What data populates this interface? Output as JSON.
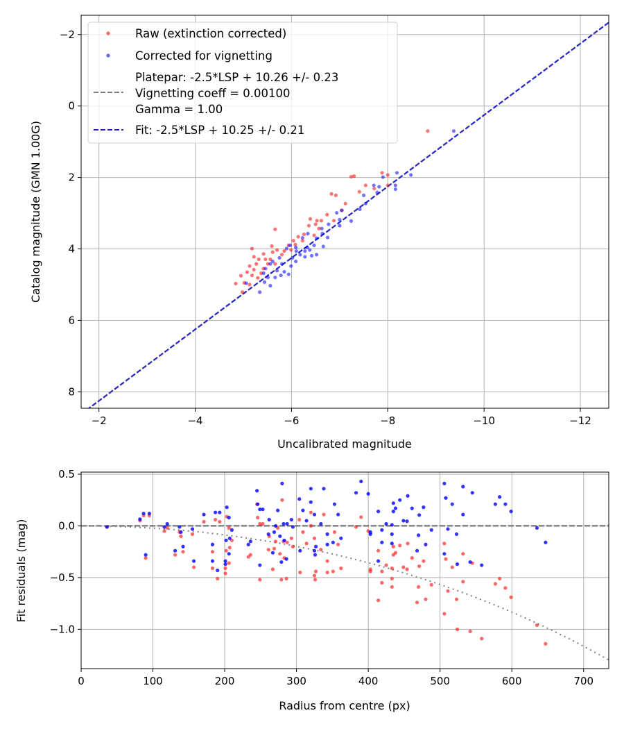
{
  "chart_data": [
    {
      "type": "scatter",
      "title": "",
      "xlabel": "Uncalibrated magnitude",
      "ylabel": "Catalog magnitude (GMN 1.00G)",
      "xlim": [
        -1.63,
        -12.59
      ],
      "ylim": [
        8.46,
        -2.54
      ],
      "grid": true,
      "legend_placement": "top-left",
      "xticks": [
        -2,
        -4,
        -6,
        -8,
        -10,
        -12
      ],
      "xtick_labels": [
        "−2",
        "−4",
        "−6",
        "−8",
        "−10",
        "−12"
      ],
      "yticks": [
        -2,
        0,
        2,
        4,
        6,
        8
      ],
      "ytick_labels": [
        "−2",
        "0",
        "2",
        "4",
        "6",
        "8"
      ],
      "legend": {
        "raw": "Raw (extinction corrected)",
        "corrected": "Corrected for vignetting",
        "platepar_line1": "Platepar: -2.5*LSP + 10.26 +/- 0.23",
        "platepar_line2": "Vignetting coeff = 0.00100",
        "platepar_line3": "Gamma = 1.00",
        "fit": "Fit: -2.5*LSP + 10.25 +/- 0.21"
      },
      "colors": {
        "raw": "#ff0000",
        "corrected": "#0000ff",
        "platepar": "#808080",
        "fit": "#2424d0"
      },
      "platepar_line": {
        "slope": 1,
        "intercept": 10.26
      },
      "fit_line": {
        "slope": 1,
        "intercept": 10.25
      },
      "series": [
        {
          "name": "Raw (extinction corrected)",
          "points": [
            [
              -8.83,
              0.7
            ],
            [
              -7.24,
              1.98
            ],
            [
              -7.3,
              1.96
            ],
            [
              -7.88,
              1.87
            ],
            [
              -8.0,
              1.93
            ],
            [
              -7.54,
              2.22
            ],
            [
              -7.41,
              2.4
            ],
            [
              -6.83,
              2.46
            ],
            [
              -6.92,
              2.5
            ],
            [
              -8.0,
              2.22
            ],
            [
              -7.72,
              2.31
            ],
            [
              -7.12,
              2.73
            ],
            [
              -6.74,
              3.04
            ],
            [
              -7.05,
              2.92
            ],
            [
              -6.39,
              3.16
            ],
            [
              -6.53,
              3.21
            ],
            [
              -6.62,
              3.21
            ],
            [
              -6.36,
              3.35
            ],
            [
              -5.66,
              3.45
            ],
            [
              -6.5,
              3.31
            ],
            [
              -6.88,
              3.21
            ],
            [
              -6.57,
              3.43
            ],
            [
              -6.14,
              3.66
            ],
            [
              -6.26,
              3.59
            ],
            [
              -6.47,
              3.62
            ],
            [
              -5.94,
              3.9
            ],
            [
              -6.08,
              3.88
            ],
            [
              -5.85,
              4.06
            ],
            [
              -5.59,
              3.92
            ],
            [
              -5.61,
              4.09
            ],
            [
              -5.18,
              3.99
            ],
            [
              -5.42,
              4.14
            ],
            [
              -5.32,
              4.29
            ],
            [
              -5.27,
              4.42
            ],
            [
              -5.46,
              4.29
            ],
            [
              -5.13,
              4.48
            ],
            [
              -5.22,
              4.58
            ],
            [
              -5.08,
              4.65
            ],
            [
              -5.56,
              4.29
            ],
            [
              -5.37,
              4.68
            ],
            [
              -5.18,
              4.74
            ],
            [
              -5.3,
              4.81
            ],
            [
              -4.84,
              4.97
            ],
            [
              -4.98,
              5.21
            ],
            [
              -5.51,
              4.42
            ],
            [
              -5.8,
              4.16
            ],
            [
              -5.66,
              4.42
            ],
            [
              -5.42,
              4.55
            ],
            [
              -5.13,
              5.0
            ],
            [
              -5.22,
              4.22
            ],
            [
              -5.7,
              4.03
            ],
            [
              -5.99,
              4.03
            ],
            [
              -6.04,
              3.77
            ],
            [
              -6.23,
              3.77
            ],
            [
              -5.02,
              4.95
            ],
            [
              -4.95,
              4.75
            ]
          ]
        },
        {
          "name": "Corrected for vignetting",
          "points": [
            [
              -9.37,
              0.7
            ],
            [
              -8.19,
              1.87
            ],
            [
              -8.48,
              1.93
            ],
            [
              -7.9,
              1.99
            ],
            [
              -7.71,
              2.22
            ],
            [
              -7.82,
              2.26
            ],
            [
              -8.16,
              2.22
            ],
            [
              -8.16,
              2.33
            ],
            [
              -7.78,
              2.42
            ],
            [
              -7.5,
              2.5
            ],
            [
              -7.54,
              2.73
            ],
            [
              -7.42,
              2.89
            ],
            [
              -6.94,
              2.99
            ],
            [
              -7.04,
              2.92
            ],
            [
              -7.24,
              3.22
            ],
            [
              -7.0,
              3.18
            ],
            [
              -6.77,
              3.31
            ],
            [
              -7.0,
              3.35
            ],
            [
              -6.63,
              3.43
            ],
            [
              -6.64,
              3.57
            ],
            [
              -6.75,
              3.68
            ],
            [
              -6.34,
              3.57
            ],
            [
              -6.23,
              3.69
            ],
            [
              -6.52,
              3.7
            ],
            [
              -6.66,
              3.93
            ],
            [
              -6.47,
              3.9
            ],
            [
              -6.33,
              3.96
            ],
            [
              -6.09,
              3.96
            ],
            [
              -5.97,
              3.9
            ],
            [
              -5.9,
              3.99
            ],
            [
              -6.18,
              4.16
            ],
            [
              -6.28,
              4.22
            ],
            [
              -6.42,
              4.19
            ],
            [
              -6.52,
              4.16
            ],
            [
              -6.09,
              4.35
            ],
            [
              -5.99,
              4.48
            ],
            [
              -5.8,
              4.42
            ],
            [
              -5.75,
              4.25
            ],
            [
              -5.61,
              4.35
            ],
            [
              -5.56,
              4.42
            ],
            [
              -5.46,
              4.55
            ],
            [
              -5.42,
              4.68
            ],
            [
              -5.51,
              4.8
            ],
            [
              -5.44,
              4.93
            ],
            [
              -5.56,
              5.03
            ],
            [
              -5.34,
              5.21
            ],
            [
              -5.06,
              4.96
            ],
            [
              -5.94,
              4.71
            ],
            [
              -5.78,
              4.74
            ],
            [
              -5.85,
              4.64
            ],
            [
              -5.7,
              4.61
            ],
            [
              -5.66,
              4.8
            ],
            [
              -6.02,
              4.25
            ],
            [
              -6.1,
              4.06
            ],
            [
              -6.28,
              4.06
            ],
            [
              -6.38,
              4.03
            ]
          ]
        }
      ]
    },
    {
      "type": "scatter",
      "title": "",
      "xlabel": "Radius from centre (px)",
      "ylabel": "Fit residuals (mag)",
      "xlim": [
        0,
        735
      ],
      "ylim": [
        -1.38,
        0.52
      ],
      "grid": true,
      "xticks": [
        0,
        100,
        200,
        300,
        400,
        500,
        600,
        700
      ],
      "xtick_labels": [
        "0",
        "100",
        "200",
        "300",
        "400",
        "500",
        "600",
        "700"
      ],
      "yticks": [
        0.5,
        0.0,
        -0.5,
        -1.0
      ],
      "ytick_labels": [
        "0.5",
        "0.0",
        "−0.5",
        "−1.0"
      ],
      "zero_line": 0,
      "vignetting_coeff": 0.001,
      "colors": {
        "raw": "#ff0000",
        "corrected": "#0000ff",
        "zero": "#555555",
        "model": "#808080"
      },
      "columns": [
        "radius",
        "raw_residual",
        "corrected_residual"
      ],
      "points": [
        [
          36,
          -0.01,
          -0.01
        ],
        [
          82,
          0.05,
          0.065
        ],
        [
          87,
          0.1,
          0.12
        ],
        [
          95,
          0.1,
          0.12
        ],
        [
          90,
          -0.31,
          -0.28
        ],
        [
          116,
          -0.05,
          -0.01
        ],
        [
          120,
          -0.02,
          0.02
        ],
        [
          131,
          -0.28,
          -0.24
        ],
        [
          137,
          -0.06,
          -0.01
        ],
        [
          139,
          -0.1,
          -0.06
        ],
        [
          142,
          -0.25,
          -0.2
        ],
        [
          155,
          -0.08,
          -0.03
        ],
        [
          157,
          -0.4,
          -0.34
        ],
        [
          171,
          0.04,
          0.11
        ],
        [
          183,
          -0.25,
          -0.18
        ],
        [
          183,
          -0.41,
          -0.34
        ],
        [
          187,
          0.06,
          0.13
        ],
        [
          190,
          -0.51,
          -0.43
        ],
        [
          193,
          0.04,
          0.13
        ],
        [
          201,
          -0.41,
          -0.34
        ],
        [
          201,
          -0.46,
          -0.37
        ],
        [
          202,
          -0.24,
          -0.14
        ],
        [
          203,
          0.09,
          0.18
        ],
        [
          206,
          -0.02,
          0.08
        ],
        [
          207,
          -0.21,
          -0.12
        ],
        [
          206,
          -0.36,
          -0.27
        ],
        [
          210,
          -0.14,
          -0.04
        ],
        [
          233,
          -0.3,
          -0.18
        ],
        [
          236,
          -0.28,
          -0.15
        ],
        [
          245,
          0.21,
          0.34
        ],
        [
          246,
          0.08,
          0.21
        ],
        [
          249,
          0.02,
          0.16
        ],
        [
          253,
          0.02,
          0.16
        ],
        [
          249,
          -0.52,
          -0.38
        ],
        [
          262,
          -0.1,
          0.06
        ],
        [
          261,
          -0.23,
          -0.08
        ],
        [
          269,
          -0.22,
          -0.06
        ],
        [
          267,
          -0.42,
          -0.26
        ],
        [
          271,
          -0.15,
          0.0
        ],
        [
          274,
          -0.02,
          0.15
        ],
        [
          280,
          0.25,
          0.41
        ],
        [
          277,
          -0.27,
          -0.1
        ],
        [
          279,
          -0.52,
          -0.35
        ],
        [
          282,
          -0.15,
          0.02
        ],
        [
          283,
          -0.31,
          -0.14
        ],
        [
          286,
          -0.51,
          -0.32
        ],
        [
          287,
          -0.16,
          0.02
        ],
        [
          293,
          -0.12,
          0.06
        ],
        [
          295,
          -0.2,
          -0.01
        ],
        [
          304,
          0.06,
          0.26
        ],
        [
          305,
          -0.45,
          -0.24
        ],
        [
          309,
          -0.06,
          0.15
        ],
        [
          314,
          -0.17,
          0.05
        ],
        [
          320,
          0.13,
          0.36
        ],
        [
          320,
          0.0,
          0.23
        ],
        [
          325,
          -0.12,
          0.11
        ],
        [
          325,
          -0.48,
          -0.24
        ],
        [
          326,
          -0.52,
          -0.28
        ],
        [
          327,
          -0.44,
          -0.2
        ],
        [
          334,
          -0.23,
          0.02
        ],
        [
          338,
          0.11,
          0.36
        ],
        [
          343,
          -0.34,
          -0.08
        ],
        [
          343,
          -0.45,
          -0.18
        ],
        [
          351,
          -0.44,
          -0.16
        ],
        [
          353,
          -0.06,
          0.21
        ],
        [
          358,
          -0.18,
          0.11
        ],
        [
          362,
          -0.41,
          -0.12
        ],
        [
          383,
          -0.01,
          0.32
        ],
        [
          390,
          0.085,
          0.43
        ],
        [
          400,
          -0.05,
          0.31
        ],
        [
          403,
          -0.42,
          -0.06
        ],
        [
          403,
          -0.44,
          -0.08
        ],
        [
          414,
          -0.24,
          0.14
        ],
        [
          414,
          -0.72,
          -0.34
        ],
        [
          419,
          -0.44,
          -0.04
        ],
        [
          419,
          -0.55,
          -0.16
        ],
        [
          425,
          -0.38,
          0.02
        ],
        [
          433,
          -0.51,
          0.01
        ],
        [
          433,
          -0.59,
          -0.17
        ],
        [
          433,
          -0.41,
          -0.08
        ],
        [
          435,
          -0.2,
          0.22
        ],
        [
          435,
          -0.28,
          0.14
        ],
        [
          438,
          -0.26,
          0.17
        ],
        [
          444,
          -0.19,
          0.25
        ],
        [
          449,
          -0.4,
          0.05
        ],
        [
          454,
          -0.42,
          0.045
        ],
        [
          455,
          -0.17,
          0.29
        ],
        [
          461,
          -0.31,
          0.17
        ],
        [
          468,
          -0.74,
          -0.24
        ],
        [
          470,
          -0.59,
          -0.09
        ],
        [
          471,
          -0.39,
          0.105
        ],
        [
          477,
          -0.34,
          0.18
        ],
        [
          480,
          -0.71,
          -0.18
        ],
        [
          488,
          -0.57,
          -0.04
        ],
        [
          506,
          -0.17,
          0.41
        ],
        [
          506,
          -0.85,
          -0.27
        ],
        [
          508,
          -0.32,
          0.27
        ],
        [
          511,
          -0.63,
          -0.03
        ],
        [
          517,
          -0.4,
          0.21
        ],
        [
          523,
          -0.71,
          -0.08
        ],
        [
          524,
          -1.0,
          -0.37
        ],
        [
          532,
          -0.27,
          0.38
        ],
        [
          532,
          -0.54,
          0.11
        ],
        [
          542,
          -1.02,
          -0.35
        ],
        [
          545,
          -0.36,
          0.32
        ],
        [
          558,
          -1.09,
          -0.38
        ],
        [
          577,
          -0.56,
          0.21
        ],
        [
          583,
          -0.51,
          0.28
        ],
        [
          591,
          -0.6,
          0.21
        ],
        [
          599,
          -0.69,
          0.14
        ],
        [
          635,
          -0.96,
          -0.02
        ],
        [
          647,
          -1.14,
          -0.16
        ]
      ]
    }
  ]
}
